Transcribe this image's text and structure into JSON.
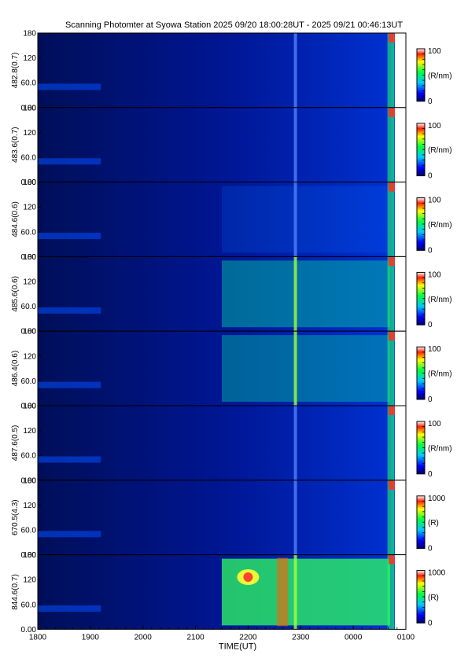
{
  "title": "Scanning Photomter at Syowa Station 2025 09/20 18:00:28UT - 2025 09/21 00:46:13UT",
  "chart_data": {
    "type": "heatmap",
    "title": "Scanning Photomter at Syowa Station 2025 09/20 18:00:28UT - 2025 09/21 00:46:13UT",
    "xlabel": "TIME(UT)",
    "x_ticks": [
      "1800",
      "1900",
      "2000",
      "2100",
      "2200",
      "2300",
      "0000",
      "0100"
    ],
    "x_range_hours": [
      18,
      25
    ],
    "y_ticks": [
      "0.00",
      "60.0",
      "120",
      "180"
    ],
    "y_range": [
      0,
      180
    ],
    "panels": [
      {
        "ylabel": "482.8(0.7)",
        "cb_max": "100",
        "cb_min": "0",
        "cb_unit": "(R/nm)",
        "activity": 0.05
      },
      {
        "ylabel": "483.6(0.7)",
        "cb_max": "100",
        "cb_min": "0",
        "cb_unit": "(R/nm)",
        "activity": 0.05
      },
      {
        "ylabel": "484.6(0.6)",
        "cb_max": "100",
        "cb_min": "0",
        "cb_unit": "(R/nm)",
        "activity": 0.2
      },
      {
        "ylabel": "485.6(0.6)",
        "cb_max": "100",
        "cb_min": "0",
        "cb_unit": "(R/nm)",
        "activity": 0.5
      },
      {
        "ylabel": "486.4(0.6)",
        "cb_max": "100",
        "cb_min": "0",
        "cb_unit": "(R/nm)",
        "activity": 0.45
      },
      {
        "ylabel": "487.6(0.5)",
        "cb_max": "100",
        "cb_min": "0",
        "cb_unit": "(R/nm)",
        "activity": 0.08
      },
      {
        "ylabel": "670.5(4.3)",
        "cb_max": "1000",
        "cb_min": "0",
        "cb_unit": "(R)",
        "activity": 0.1
      },
      {
        "ylabel": "844.6(0.7)",
        "cb_max": "1000",
        "cb_min": "0",
        "cb_unit": "(R)",
        "activity": 0.9
      }
    ]
  }
}
